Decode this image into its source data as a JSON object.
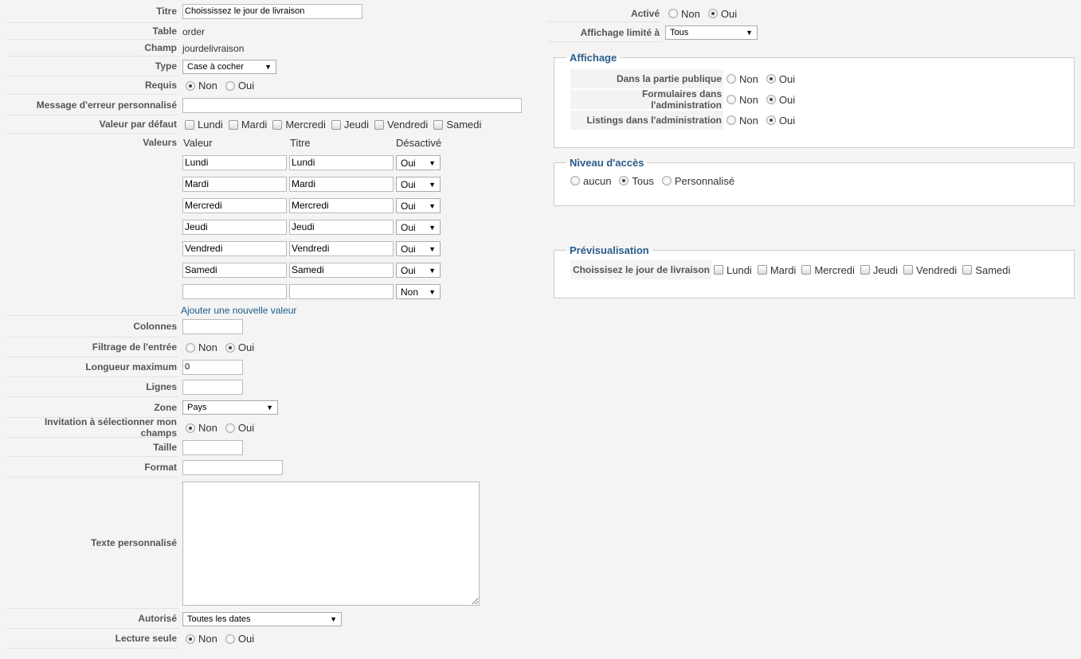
{
  "left": [
    {
      "label": "Titre",
      "type": "input",
      "value": "Choississez le jour de livraison",
      "w": 226
    },
    {
      "label": "Table",
      "type": "text",
      "value": "order"
    },
    {
      "label": "Champ",
      "type": "text",
      "value": "jourdelivraison"
    },
    {
      "label": "Type",
      "type": "select",
      "value": "Case à cocher",
      "w": 118
    },
    {
      "label": "Requis",
      "type": "radio",
      "options": [
        "Non",
        "Oui"
      ],
      "selected": 0
    },
    {
      "label": "Message d'erreur personnalisé",
      "type": "input",
      "value": "",
      "w": 426
    },
    {
      "label": "Valeur par défaut",
      "type": "checks",
      "options": [
        "Lundi",
        "Mardi",
        "Mercredi",
        "Jeudi",
        "Vendredi",
        "Samedi"
      ]
    },
    {
      "label": "Valeurs",
      "type": "values"
    },
    {
      "label": "Colonnes",
      "type": "input",
      "value": "",
      "w": 76
    },
    {
      "label": "Filtrage de l'entrée",
      "type": "radio",
      "options": [
        "Non",
        "Oui"
      ],
      "selected": 1
    },
    {
      "label": "Longueur maximum",
      "type": "input",
      "value": "0",
      "w": 76
    },
    {
      "label": "Lignes",
      "type": "input",
      "value": "",
      "w": 76
    },
    {
      "label": "Zone",
      "type": "select",
      "value": "Pays",
      "w": 120
    },
    {
      "label": "Invitation à sélectionner mon champs",
      "type": "radio",
      "options": [
        "Non",
        "Oui"
      ],
      "selected": 0
    },
    {
      "label": "Taille",
      "type": "input",
      "value": "",
      "w": 76
    },
    {
      "label": "Format",
      "type": "input",
      "value": "",
      "w": 126
    },
    {
      "label": "Texte personnalisé",
      "type": "textarea",
      "value": ""
    },
    {
      "label": "Autorisé",
      "type": "select",
      "value": "Toutes les dates",
      "w": 200
    },
    {
      "label": "Lecture seule",
      "type": "radio",
      "options": [
        "Non",
        "Oui"
      ],
      "selected": 0
    }
  ],
  "values_table": {
    "headers": [
      "Valeur",
      "Titre",
      "Désactivé"
    ],
    "rows": [
      [
        "Lundi",
        "Lundi",
        "Oui"
      ],
      [
        "Mardi",
        "Mardi",
        "Oui"
      ],
      [
        "Mercredi",
        "Mercredi",
        "Oui"
      ],
      [
        "Jeudi",
        "Jeudi",
        "Oui"
      ],
      [
        "Vendredi",
        "Vendredi",
        "Oui"
      ],
      [
        "Samedi",
        "Samedi",
        "Oui"
      ],
      [
        "",
        "",
        "Non"
      ]
    ],
    "add_link": "Ajouter une nouvelle valeur"
  },
  "right": {
    "active": {
      "label": "Activé",
      "options": [
        "Non",
        "Oui"
      ],
      "selected": 1
    },
    "limit": {
      "label": "Affichage limité à",
      "value": "Tous"
    },
    "affichage": {
      "legend": "Affichage",
      "rows": [
        {
          "label": "Dans la partie publique",
          "options": [
            "Non",
            "Oui"
          ],
          "selected": 1
        },
        {
          "label": "Formulaires dans l'administration",
          "options": [
            "Non",
            "Oui"
          ],
          "selected": 1
        },
        {
          "label": "Listings dans l'administration",
          "options": [
            "Non",
            "Oui"
          ],
          "selected": 1
        }
      ]
    },
    "access": {
      "legend": "Niveau d'accès",
      "options": [
        "aucun",
        "Tous",
        "Personnalisé"
      ],
      "selected": 1
    },
    "preview": {
      "legend": "Prévisualisation",
      "label": "Choissisez le jour de livraison",
      "options": [
        "Lundi",
        "Mardi",
        "Mercredi",
        "Jeudi",
        "Vendredi",
        "Samedi"
      ]
    }
  }
}
